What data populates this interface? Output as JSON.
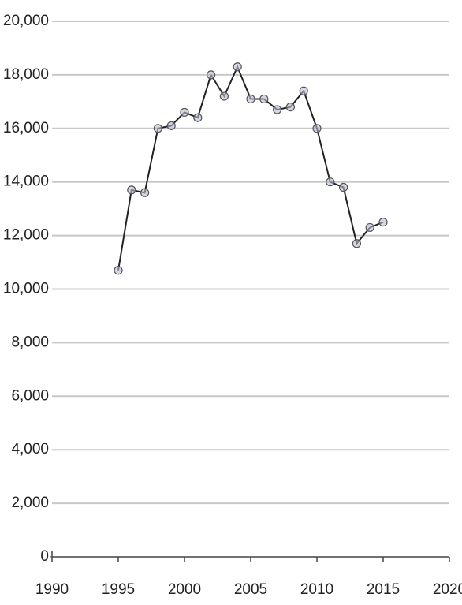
{
  "chart_data": {
    "type": "line",
    "x": [
      1995,
      1996,
      1997,
      1998,
      1999,
      2000,
      2001,
      2002,
      2003,
      2004,
      2005,
      2006,
      2007,
      2008,
      2009,
      2010,
      2011,
      2012,
      2013,
      2014,
      2015
    ],
    "values": [
      10700,
      13700,
      13600,
      16000,
      16100,
      16600,
      16400,
      18000,
      17200,
      18300,
      17100,
      17100,
      16700,
      16800,
      17400,
      16000,
      14000,
      13800,
      11700,
      12300,
      12500
    ],
    "color": "#222222",
    "marker_color": "#b8bcd6",
    "xlim": [
      1990,
      2020
    ],
    "xticks": [
      1990,
      1995,
      2000,
      2005,
      2010,
      2015,
      2020
    ],
    "ylim": [
      0,
      20000
    ],
    "yticks": [
      0,
      {
        "value": 2000,
        "label": "2,000"
      },
      {
        "value": 4000,
        "label": "4,000"
      },
      {
        "value": 6000,
        "label": "6,000"
      },
      {
        "value": 8000,
        "label": "8,000"
      },
      {
        "value": 10000,
        "label": "10,000"
      },
      {
        "value": 12000,
        "label": "12,000"
      },
      {
        "value": 14000,
        "label": "14,000"
      },
      {
        "value": 16000,
        "label": "16,000"
      },
      {
        "value": 18000,
        "label": "18,000"
      },
      {
        "value": 20000,
        "label": "20,000"
      }
    ],
    "grid": true
  }
}
